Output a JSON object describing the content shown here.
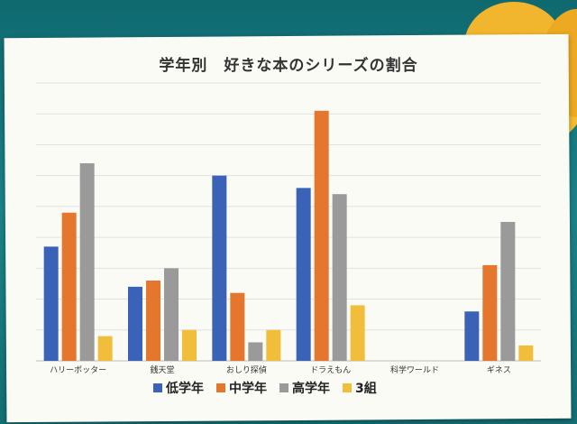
{
  "chart_data": {
    "type": "bar",
    "title": "学年別　好きな本のシリーズの割合",
    "categories": [
      "ハリーポッター",
      "銭天堂",
      "おしり探偵",
      "ドラえもん",
      "科学ワールド",
      "ギネス"
    ],
    "series": [
      {
        "name": "低学年",
        "color": "#3a63b8",
        "values": [
          18.5,
          12,
          30,
          28,
          0,
          8
        ]
      },
      {
        "name": "中学年",
        "color": "#e4762e",
        "values": [
          24,
          13,
          11,
          40.5,
          0,
          15.5
        ]
      },
      {
        "name": "高学年",
        "color": "#9a9a9a",
        "values": [
          32,
          15,
          3,
          27,
          0,
          22.5
        ]
      },
      {
        "name": "3組",
        "color": "#f0be3a",
        "values": [
          4,
          5,
          5,
          9,
          0,
          2.5
        ]
      }
    ],
    "ylim": [
      0,
      45
    ],
    "grid": true,
    "legend_position": "bottom"
  }
}
